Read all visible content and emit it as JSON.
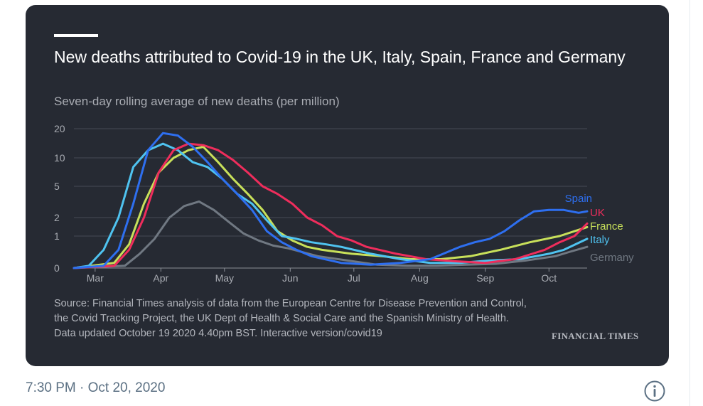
{
  "tweet": {
    "timestamp": "7:30 PM · Oct 20, 2020",
    "info_icon": "info-icon"
  },
  "colors": {
    "card_bg": "#262a33",
    "spain": "#2e6ff0",
    "uk": "#ef2d5c",
    "france": "#c8e05a",
    "italy": "#4fc3f0",
    "germany": "#707882"
  },
  "chart_data": {
    "type": "line",
    "title": "New deaths attributed to Covid-19 in the UK, Italy, Spain, France and Germany",
    "subtitle": "Seven-day rolling average of new deaths (per million)",
    "y_scale": "log-like",
    "y_ticks": [
      {
        "value": 20,
        "label": "20"
      },
      {
        "value": 10,
        "label": "10"
      },
      {
        "value": 5,
        "label": "5"
      },
      {
        "value": 2,
        "label": "2"
      },
      {
        "value": 1,
        "label": "1"
      },
      {
        "value": 0,
        "label": "0"
      }
    ],
    "x_ticks": [
      "Mar",
      "Apr",
      "May",
      "Jun",
      "Jul",
      "Aug",
      "Sep",
      "Oct"
    ],
    "grid": true,
    "legend": "line-end labels",
    "series": [
      {
        "name": "Spain",
        "color": "#2e6ff0",
        "points": [
          [
            "02-20",
            0
          ],
          [
            "03-05",
            0.02
          ],
          [
            "03-12",
            0.3
          ],
          [
            "03-19",
            3
          ],
          [
            "03-26",
            12
          ],
          [
            "04-02",
            18
          ],
          [
            "04-09",
            17
          ],
          [
            "04-16",
            13
          ],
          [
            "04-23",
            9
          ],
          [
            "04-30",
            6
          ],
          [
            "05-07",
            4
          ],
          [
            "05-14",
            2.5
          ],
          [
            "05-21",
            1.2
          ],
          [
            "05-28",
            0.6
          ],
          [
            "06-04",
            0.3
          ],
          [
            "06-11",
            0.15
          ],
          [
            "06-25",
            0.05
          ],
          [
            "07-09",
            0.03
          ],
          [
            "07-23",
            0.05
          ],
          [
            "08-06",
            0.1
          ],
          [
            "08-20",
            0.4
          ],
          [
            "08-27",
            0.6
          ],
          [
            "09-03",
            0.8
          ],
          [
            "09-10",
            1.2
          ],
          [
            "09-17",
            1.8
          ],
          [
            "09-24",
            2.4
          ],
          [
            "10-01",
            2.5
          ],
          [
            "10-08",
            2.5
          ],
          [
            "10-15",
            2.3
          ],
          [
            "10-19",
            2.4
          ]
        ]
      },
      {
        "name": "UK",
        "color": "#ef2d5c",
        "points": [
          [
            "02-20",
            0
          ],
          [
            "03-10",
            0.02
          ],
          [
            "03-17",
            0.3
          ],
          [
            "03-24",
            2
          ],
          [
            "03-31",
            7
          ],
          [
            "04-07",
            12
          ],
          [
            "04-14",
            14
          ],
          [
            "04-21",
            13.5
          ],
          [
            "04-28",
            12
          ],
          [
            "05-05",
            9.5
          ],
          [
            "05-12",
            7
          ],
          [
            "05-19",
            5
          ],
          [
            "05-26",
            4
          ],
          [
            "06-02",
            3
          ],
          [
            "06-09",
            2
          ],
          [
            "06-16",
            1.5
          ],
          [
            "06-23",
            1
          ],
          [
            "06-30",
            0.7
          ],
          [
            "07-07",
            0.4
          ],
          [
            "07-21",
            0.2
          ],
          [
            "08-04",
            0.1
          ],
          [
            "08-18",
            0.07
          ],
          [
            "09-01",
            0.05
          ],
          [
            "09-15",
            0.1
          ],
          [
            "09-29",
            0.3
          ],
          [
            "10-06",
            0.6
          ],
          [
            "10-13",
            1.0
          ],
          [
            "10-19",
            1.6
          ]
        ]
      },
      {
        "name": "France",
        "color": "#c8e05a",
        "points": [
          [
            "02-20",
            0
          ],
          [
            "03-10",
            0.05
          ],
          [
            "03-17",
            0.5
          ],
          [
            "03-24",
            3
          ],
          [
            "03-31",
            7
          ],
          [
            "04-07",
            10
          ],
          [
            "04-14",
            12
          ],
          [
            "04-21",
            13
          ],
          [
            "04-28",
            9
          ],
          [
            "05-05",
            6
          ],
          [
            "05-12",
            4
          ],
          [
            "05-19",
            2.5
          ],
          [
            "05-26",
            1.2
          ],
          [
            "06-02",
            0.7
          ],
          [
            "06-09",
            0.4
          ],
          [
            "06-16",
            0.3
          ],
          [
            "06-30",
            0.2
          ],
          [
            "07-14",
            0.15
          ],
          [
            "07-28",
            0.1
          ],
          [
            "08-11",
            0.1
          ],
          [
            "08-25",
            0.15
          ],
          [
            "09-08",
            0.3
          ],
          [
            "09-22",
            0.6
          ],
          [
            "10-06",
            1.0
          ],
          [
            "10-13",
            1.2
          ],
          [
            "10-19",
            1.4
          ]
        ]
      },
      {
        "name": "Italy",
        "color": "#4fc3f0",
        "points": [
          [
            "02-20",
            0
          ],
          [
            "02-27",
            0.02
          ],
          [
            "03-05",
            0.3
          ],
          [
            "03-12",
            2
          ],
          [
            "03-19",
            8
          ],
          [
            "03-26",
            12
          ],
          [
            "04-02",
            14
          ],
          [
            "04-09",
            12
          ],
          [
            "04-16",
            9
          ],
          [
            "04-23",
            8
          ],
          [
            "04-30",
            6
          ],
          [
            "05-07",
            4
          ],
          [
            "05-14",
            3
          ],
          [
            "05-21",
            1.8
          ],
          [
            "05-28",
            1
          ],
          [
            "06-04",
            0.8
          ],
          [
            "06-11",
            0.6
          ],
          [
            "06-18",
            0.5
          ],
          [
            "06-25",
            0.4
          ],
          [
            "07-09",
            0.2
          ],
          [
            "07-23",
            0.1
          ],
          [
            "08-06",
            0.05
          ],
          [
            "08-20",
            0.05
          ],
          [
            "09-03",
            0.08
          ],
          [
            "09-17",
            0.1
          ],
          [
            "10-01",
            0.2
          ],
          [
            "10-08",
            0.3
          ],
          [
            "10-19",
            0.8
          ]
        ]
      },
      {
        "name": "Germany",
        "color": "#707882",
        "points": [
          [
            "02-20",
            0
          ],
          [
            "03-15",
            0.02
          ],
          [
            "03-22",
            0.2
          ],
          [
            "03-29",
            0.8
          ],
          [
            "04-05",
            2
          ],
          [
            "04-12",
            2.8
          ],
          [
            "04-19",
            3.2
          ],
          [
            "04-26",
            2.5
          ],
          [
            "05-03",
            1.7
          ],
          [
            "05-10",
            1.1
          ],
          [
            "05-17",
            0.7
          ],
          [
            "05-24",
            0.45
          ],
          [
            "05-31",
            0.35
          ],
          [
            "06-14",
            0.15
          ],
          [
            "06-28",
            0.08
          ],
          [
            "07-12",
            0.03
          ],
          [
            "07-26",
            0.02
          ],
          [
            "08-09",
            0.02
          ],
          [
            "08-23",
            0.03
          ],
          [
            "09-06",
            0.04
          ],
          [
            "09-20",
            0.08
          ],
          [
            "10-04",
            0.15
          ],
          [
            "10-11",
            0.25
          ],
          [
            "10-19",
            0.4
          ]
        ]
      }
    ]
  },
  "footer": {
    "source_line1": "Source: Financial Times analysis of data from the European Centre for Disease Prevention and Control,",
    "source_line2": "the Covid Tracking Project, the UK Dept of Health & Social Care and the Spanish Ministry of Health.",
    "source_line3": "Data updated October 19 2020 4.40pm BST. Interactive version/covid19",
    "brand": "FINANCIAL TIMES"
  }
}
